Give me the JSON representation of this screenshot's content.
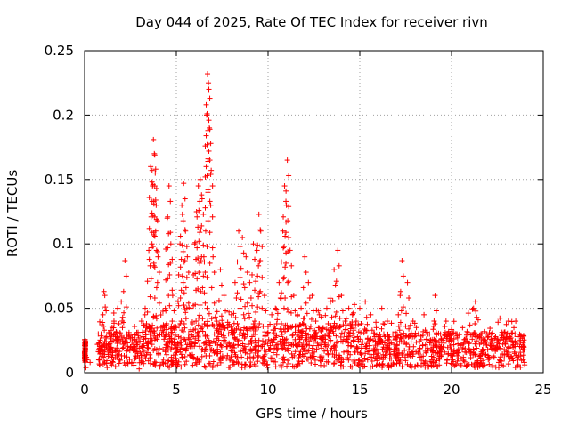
{
  "chart_data": {
    "type": "scatter",
    "title": "Day 044 of 2025, Rate Of TEC Index for receiver rivn",
    "xlabel": "GPS time / hours",
    "ylabel": "ROTI / TECUs",
    "xlim": [
      0,
      25
    ],
    "ylim": [
      0,
      0.25
    ],
    "xticks": [
      "0",
      "5",
      "10",
      "15",
      "20",
      "25"
    ],
    "yticks": [
      "0",
      "0.05",
      "0.1",
      "0.15",
      "0.2",
      "0.25"
    ],
    "grid": true,
    "marker": "+",
    "color": "#ff0000",
    "series": [
      {
        "x": [
          0.0,
          0.05,
          0.1,
          0.3,
          0.7,
          0.9,
          1.0,
          1.05,
          1.1,
          1.2,
          1.4,
          1.6,
          1.8,
          2.0,
          2.2,
          2.3,
          2.5,
          2.7,
          2.9,
          3.1,
          3.3,
          3.4,
          3.5,
          3.6,
          3.7,
          3.75,
          3.8,
          3.85,
          3.9,
          4.0,
          4.2,
          4.4,
          4.5,
          4.6,
          4.7,
          4.8,
          5.0,
          5.2,
          5.3,
          5.4,
          5.5,
          5.6,
          5.8,
          6.0,
          6.1,
          6.2,
          6.3,
          6.4,
          6.5,
          6.6,
          6.65,
          6.7,
          6.75,
          6.8,
          6.9,
          7.0,
          7.2,
          7.4,
          7.6,
          7.8,
          8.0,
          8.2,
          8.4,
          8.6,
          8.8,
          9.0,
          9.2,
          9.4,
          9.5,
          9.6,
          9.8,
          10.0,
          10.2,
          10.4,
          10.6,
          10.8,
          10.9,
          11.0,
          11.05,
          11.2,
          11.4,
          11.6,
          11.8,
          12.0,
          12.2,
          12.4,
          12.6,
          12.8,
          13.0,
          13.2,
          13.4,
          13.6,
          13.8,
          14.0,
          14.2,
          14.4,
          14.6,
          14.8,
          15.0,
          15.3,
          15.6,
          15.9,
          16.2,
          16.5,
          16.8,
          17.1,
          17.2,
          17.3,
          17.6,
          17.9,
          18.2,
          18.5,
          18.8,
          19.1,
          19.4,
          19.7,
          20.0,
          20.3,
          20.6,
          20.9,
          21.2,
          21.3,
          21.6,
          21.9,
          22.2,
          22.5,
          22.8,
          23.1,
          23.4,
          23.5,
          23.7,
          23.9
        ],
        "y": [
          0.016,
          0.022,
          0.012,
          0.008,
          0.022,
          0.03,
          0.045,
          0.063,
          0.06,
          0.028,
          0.018,
          0.04,
          0.05,
          0.055,
          0.087,
          0.03,
          0.02,
          0.025,
          0.015,
          0.04,
          0.05,
          0.035,
          0.095,
          0.16,
          0.145,
          0.181,
          0.17,
          0.155,
          0.13,
          0.09,
          0.03,
          0.05,
          0.12,
          0.145,
          0.1,
          0.06,
          0.035,
          0.1,
          0.13,
          0.147,
          0.11,
          0.09,
          0.05,
          0.1,
          0.125,
          0.145,
          0.15,
          0.135,
          0.09,
          0.11,
          0.2,
          0.232,
          0.225,
          0.19,
          0.157,
          0.09,
          0.04,
          0.08,
          0.06,
          0.035,
          0.045,
          0.07,
          0.11,
          0.105,
          0.09,
          0.07,
          0.1,
          0.095,
          0.123,
          0.11,
          0.06,
          0.03,
          0.045,
          0.05,
          0.07,
          0.11,
          0.145,
          0.13,
          0.165,
          0.095,
          0.06,
          0.045,
          0.05,
          0.09,
          0.07,
          0.06,
          0.04,
          0.045,
          0.035,
          0.05,
          0.055,
          0.08,
          0.095,
          0.06,
          0.04,
          0.05,
          0.045,
          0.04,
          0.05,
          0.055,
          0.045,
          0.035,
          0.05,
          0.04,
          0.03,
          0.045,
          0.06,
          0.087,
          0.07,
          0.04,
          0.03,
          0.045,
          0.03,
          0.06,
          0.03,
          0.04,
          0.025,
          0.03,
          0.035,
          0.03,
          0.05,
          0.055,
          0.03,
          0.03,
          0.025,
          0.02,
          0.03,
          0.04,
          0.035,
          0.04,
          0.025,
          0.02
        ]
      }
    ]
  }
}
